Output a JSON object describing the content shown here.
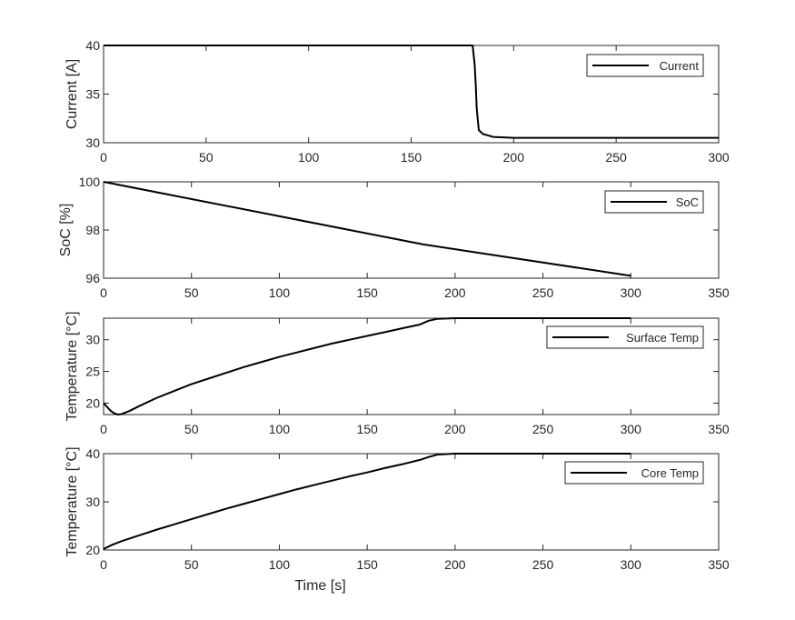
{
  "chart_data": [
    {
      "type": "line",
      "ylabel": "Current [A]",
      "xlabel": "",
      "xlim": [
        0,
        300
      ],
      "ylim": [
        30,
        40
      ],
      "xticks": [
        "0",
        "50",
        "100",
        "150",
        "200",
        "250",
        "300"
      ],
      "yticks": [
        "30",
        "35",
        "40"
      ],
      "legend_position": "top-right",
      "series": [
        {
          "name": "Current",
          "color": "#000000",
          "points": [
            [
              0,
              40
            ],
            [
              180,
              40
            ],
            [
              181,
              38
            ],
            [
              181.5,
              36
            ],
            [
              182,
              33.5
            ],
            [
              183,
              31.3
            ],
            [
              185,
              30.9
            ],
            [
              190,
              30.6
            ],
            [
              200,
              30.5
            ],
            [
              250,
              30.5
            ],
            [
              300,
              30.5
            ]
          ]
        }
      ]
    },
    {
      "type": "line",
      "ylabel": "SoC [%]",
      "xlabel": "",
      "xlim": [
        0,
        350
      ],
      "ylim": [
        96,
        100
      ],
      "xticks": [
        "0",
        "50",
        "100",
        "150",
        "200",
        "250",
        "300",
        "350"
      ],
      "yticks": [
        "96",
        "98",
        "100"
      ],
      "legend_position": "top-right",
      "series": [
        {
          "name": "SoC",
          "color": "#000000",
          "points": [
            [
              0,
              100
            ],
            [
              182,
              97.4
            ],
            [
              300,
              96.1
            ]
          ]
        }
      ]
    },
    {
      "type": "line",
      "ylabel": "Temperature [°C]",
      "xlabel": "",
      "xlim": [
        0,
        350
      ],
      "ylim": [
        18.2,
        33.4
      ],
      "xticks": [
        "0",
        "50",
        "100",
        "150",
        "200",
        "250",
        "300",
        "350"
      ],
      "yticks": [
        "20",
        "25",
        "30"
      ],
      "legend_position": "top-right",
      "series": [
        {
          "name": "Surface Temp",
          "color": "#000000",
          "points": [
            [
              0,
              20
            ],
            [
              2,
              19.4
            ],
            [
              4,
              18.8
            ],
            [
              6,
              18.4
            ],
            [
              8,
              18.2
            ],
            [
              10,
              18.25
            ],
            [
              15,
              18.8
            ],
            [
              20,
              19.5
            ],
            [
              30,
              20.8
            ],
            [
              40,
              21.9
            ],
            [
              50,
              23.0
            ],
            [
              60,
              23.9
            ],
            [
              70,
              24.8
            ],
            [
              80,
              25.7
            ],
            [
              90,
              26.5
            ],
            [
              100,
              27.3
            ],
            [
              110,
              28.0
            ],
            [
              120,
              28.7
            ],
            [
              130,
              29.4
            ],
            [
              140,
              30.0
            ],
            [
              150,
              30.6
            ],
            [
              160,
              31.2
            ],
            [
              170,
              31.8
            ],
            [
              180,
              32.4
            ],
            [
              185,
              33.0
            ],
            [
              190,
              33.3
            ],
            [
              200,
              33.4
            ],
            [
              250,
              33.4
            ],
            [
              300,
              33.4
            ]
          ]
        }
      ]
    },
    {
      "type": "line",
      "ylabel": "Temperature [°C]",
      "xlabel": "Time [s]",
      "xlim": [
        0,
        350
      ],
      "ylim": [
        20,
        40
      ],
      "xticks": [
        "0",
        "50",
        "100",
        "150",
        "200",
        "250",
        "300",
        "350"
      ],
      "yticks": [
        "20",
        "30",
        "40"
      ],
      "legend_position": "top-right",
      "series": [
        {
          "name": "Core Temp",
          "color": "#000000",
          "points": [
            [
              0,
              20.2
            ],
            [
              5,
              21.1
            ],
            [
              10,
              21.8
            ],
            [
              20,
              23.0
            ],
            [
              30,
              24.2
            ],
            [
              40,
              25.3
            ],
            [
              50,
              26.4
            ],
            [
              60,
              27.5
            ],
            [
              70,
              28.6
            ],
            [
              80,
              29.6
            ],
            [
              90,
              30.6
            ],
            [
              100,
              31.6
            ],
            [
              110,
              32.6
            ],
            [
              120,
              33.5
            ],
            [
              130,
              34.4
            ],
            [
              140,
              35.3
            ],
            [
              150,
              36.1
            ],
            [
              160,
              37.0
            ],
            [
              170,
              37.8
            ],
            [
              180,
              38.7
            ],
            [
              185,
              39.3
            ],
            [
              190,
              39.8
            ],
            [
              200,
              40
            ],
            [
              250,
              40
            ],
            [
              300,
              40
            ]
          ]
        }
      ]
    }
  ]
}
